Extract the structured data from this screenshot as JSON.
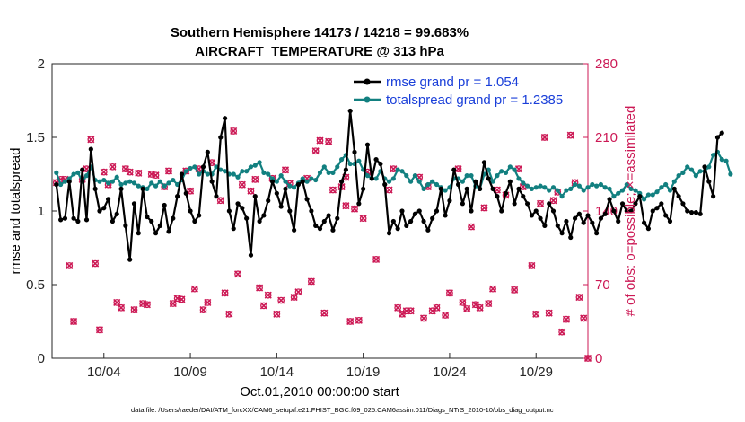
{
  "chart_data": {
    "type": "line",
    "title_line1": "Southern Hemisphere 14173 / 14218 = 99.683%",
    "title_line2": "AIRCRAFT_TEMPERATURE @ 313 hPa",
    "xlabel": "Oct.01,2010 00:00:00 start",
    "ylabel_left": "rmse and totalspread",
    "ylabel_right": "# of obs: o=possible; ×=assimilated",
    "xlim": [
      1,
      32
    ],
    "ylim_left": [
      0,
      2
    ],
    "ylim_right": [
      0,
      280
    ],
    "x_ticks": [
      4,
      9,
      14,
      19,
      24,
      29
    ],
    "x_tick_labels": [
      "10/04",
      "10/09",
      "10/14",
      "10/19",
      "10/24",
      "10/29"
    ],
    "y_ticks_left": [
      0,
      0.5,
      1,
      1.5,
      2
    ],
    "y_tick_labels_left": [
      "0",
      "0.5",
      "1",
      "1.5",
      "2"
    ],
    "y_ticks_right": [
      0,
      70,
      140,
      210,
      280
    ],
    "y_tick_labels_right": [
      "0",
      "70",
      "140",
      "210",
      "280"
    ],
    "legend": [
      "rmse grand pr = 1.054",
      "totalspread grand pr = 1.2385"
    ],
    "footer": "data file: /Users/raeder/DAI/ATM_forcXX/CAM6_setup/f.e21.FHIST_BGC.f09_025.CAM6assim.011/Diags_NTrS_2010-10/obs_diag_output.nc",
    "colors": {
      "rmse": "#000000",
      "totalspread": "#128080",
      "obs": "#cc1955"
    },
    "series": [
      {
        "name": "rmse",
        "x_start": 1.25,
        "x_step": 0.25,
        "values": [
          1.18,
          0.94,
          0.95,
          1.2,
          0.95,
          0.93,
          1.28,
          0.94,
          1.42,
          1.15,
          1.0,
          1.02,
          1.08,
          0.93,
          0.98,
          1.15,
          0.9,
          0.67,
          1.05,
          0.85,
          1.15,
          0.96,
          0.93,
          0.85,
          0.9,
          1.04,
          0.86,
          0.95,
          1.1,
          1.25,
          1.12,
          1.0,
          0.93,
          0.97,
          1.3,
          1.4,
          1.2,
          1.1,
          1.5,
          1.63,
          1.0,
          0.88,
          1.05,
          1.02,
          0.95,
          0.7,
          1.1,
          0.93,
          0.97,
          1.07,
          1.2,
          1.12,
          1.03,
          1.15,
          1.0,
          0.87,
          1.18,
          1.2,
          1.08,
          1.0,
          0.9,
          0.88,
          0.93,
          0.97,
          0.87,
          0.95,
          1.2,
          1.28,
          1.68,
          1.4,
          1.05,
          1.15,
          1.45,
          1.22,
          1.35,
          1.32,
          1.18,
          0.85,
          0.93,
          0.88,
          1.0,
          0.9,
          0.93,
          0.98,
          1.0,
          0.93,
          0.87,
          0.95,
          1.0,
          1.15,
          0.97,
          1.07,
          1.28,
          1.18,
          1.05,
          1.15,
          1.0,
          1.2,
          1.15,
          1.33,
          1.22,
          1.15,
          1.1,
          1.0,
          1.12,
          1.2,
          1.05,
          1.15,
          1.1,
          1.05,
          0.97,
          1.0,
          0.95,
          0.9,
          1.05,
          1.0,
          0.9,
          0.85,
          0.93,
          0.82,
          0.95,
          0.98,
          0.92,
          0.97,
          0.92,
          0.85,
          0.95,
          0.98,
          1.08,
          1.0,
          0.93,
          1.05,
          1.0,
          1.0,
          1.05,
          1.1,
          0.92,
          0.88,
          1.0,
          1.02,
          1.05,
          0.97,
          0.93,
          1.15,
          1.1,
          1.05,
          1.0,
          0.99,
          0.99,
          0.98,
          1.3,
          1.2,
          1.1,
          1.5,
          1.53
        ]
      },
      {
        "name": "totalspread",
        "x_start": 1.25,
        "x_step": 0.25,
        "values": [
          1.26,
          1.18,
          1.2,
          1.22,
          1.25,
          1.26,
          1.2,
          1.24,
          1.3,
          1.21,
          1.2,
          1.21,
          1.19,
          1.2,
          1.23,
          1.18,
          1.19,
          1.2,
          1.19,
          1.17,
          1.16,
          1.15,
          1.19,
          1.17,
          1.2,
          1.17,
          1.19,
          1.21,
          1.18,
          1.21,
          1.27,
          1.29,
          1.3,
          1.25,
          1.27,
          1.25,
          1.25,
          1.3,
          1.28,
          1.27,
          1.25,
          1.25,
          1.23,
          1.27,
          1.27,
          1.3,
          1.31,
          1.33,
          1.26,
          1.25,
          1.22,
          1.2,
          1.24,
          1.2,
          1.17,
          1.16,
          1.19,
          1.22,
          1.2,
          1.22,
          1.21,
          1.26,
          1.3,
          1.26,
          1.26,
          1.3,
          1.35,
          1.38,
          1.32,
          1.32,
          1.34,
          1.28,
          1.24,
          1.22,
          1.22,
          1.27,
          1.22,
          1.2,
          1.22,
          1.28,
          1.27,
          1.24,
          1.2,
          1.24,
          1.2,
          1.15,
          1.18,
          1.2,
          1.18,
          1.16,
          1.14,
          1.16,
          1.22,
          1.22,
          1.2,
          1.24,
          1.24,
          1.17,
          1.15,
          1.25,
          1.28,
          1.2,
          1.24,
          1.27,
          1.26,
          1.3,
          1.28,
          1.22,
          1.19,
          1.17,
          1.15,
          1.16,
          1.17,
          1.16,
          1.14,
          1.16,
          1.14,
          1.1,
          1.14,
          1.15,
          1.18,
          1.17,
          1.14,
          1.16,
          1.18,
          1.17,
          1.18,
          1.16,
          1.15,
          1.1,
          1.12,
          1.14,
          1.18,
          1.15,
          1.14,
          1.12,
          1.08,
          1.11,
          1.11,
          1.13,
          1.16,
          1.18,
          1.14,
          1.2,
          1.24,
          1.26,
          1.3,
          1.28,
          1.24,
          1.27,
          1.27,
          1.3,
          1.38,
          1.4,
          1.35,
          1.34,
          1.25
        ]
      }
    ],
    "obs_points": [
      [
        1.25,
        167
      ],
      [
        1.5,
        170
      ],
      [
        1.75,
        170
      ],
      [
        2,
        88
      ],
      [
        2.25,
        35
      ],
      [
        2.75,
        170
      ],
      [
        3,
        180
      ],
      [
        3.25,
        208
      ],
      [
        3.5,
        90
      ],
      [
        3.75,
        27
      ],
      [
        4,
        177
      ],
      [
        4.25,
        165
      ],
      [
        4.5,
        182
      ],
      [
        4.75,
        53
      ],
      [
        5,
        48
      ],
      [
        5.25,
        180
      ],
      [
        5.5,
        177
      ],
      [
        5.75,
        46
      ],
      [
        6,
        176
      ],
      [
        6.25,
        52
      ],
      [
        6.5,
        51
      ],
      [
        6.75,
        175
      ],
      [
        7,
        174
      ],
      [
        7.5,
        163
      ],
      [
        7.75,
        178
      ],
      [
        8,
        52
      ],
      [
        8.25,
        57
      ],
      [
        8.5,
        56
      ],
      [
        8.75,
        178
      ],
      [
        9,
        159
      ],
      [
        9.25,
        66
      ],
      [
        9.5,
        180
      ],
      [
        9.75,
        46
      ],
      [
        10,
        53
      ],
      [
        10.25,
        186
      ],
      [
        10.75,
        150
      ],
      [
        11,
        62
      ],
      [
        11.25,
        42
      ],
      [
        11.5,
        216
      ],
      [
        11.75,
        80
      ],
      [
        12,
        165
      ],
      [
        12.5,
        159
      ],
      [
        12.75,
        170
      ],
      [
        13,
        67
      ],
      [
        13.25,
        50
      ],
      [
        13.5,
        60
      ],
      [
        13.75,
        171
      ],
      [
        14,
        42
      ],
      [
        14.25,
        55
      ],
      [
        14.5,
        179
      ],
      [
        14.75,
        166
      ],
      [
        15,
        58
      ],
      [
        15.25,
        63
      ],
      [
        15.75,
        171
      ],
      [
        16,
        73
      ],
      [
        16.25,
        197
      ],
      [
        16.5,
        207
      ],
      [
        16.75,
        43
      ],
      [
        17,
        206
      ],
      [
        17.25,
        160
      ],
      [
        17.75,
        163
      ],
      [
        18,
        172
      ],
      [
        18,
        145
      ],
      [
        18.25,
        35
      ],
      [
        18.5,
        142
      ],
      [
        18.75,
        36
      ],
      [
        19,
        133
      ],
      [
        19.25,
        177
      ],
      [
        19.75,
        94
      ],
      [
        20.5,
        160
      ],
      [
        20.75,
        180
      ],
      [
        21,
        48
      ],
      [
        21.25,
        42
      ],
      [
        21.5,
        45
      ],
      [
        21.75,
        45
      ],
      [
        22.25,
        172
      ],
      [
        22.5,
        38
      ],
      [
        22.75,
        163
      ],
      [
        23,
        45
      ],
      [
        23.25,
        48
      ],
      [
        23.75,
        41
      ],
      [
        24,
        62
      ],
      [
        24.5,
        180
      ],
      [
        24.75,
        53
      ],
      [
        25,
        47
      ],
      [
        25.25,
        125
      ],
      [
        25.5,
        51
      ],
      [
        25.75,
        48
      ],
      [
        26,
        143
      ],
      [
        26.25,
        52
      ],
      [
        26.5,
        66
      ],
      [
        26.75,
        160
      ],
      [
        27.25,
        155
      ],
      [
        27.75,
        65
      ],
      [
        28,
        180
      ],
      [
        28.25,
        163
      ],
      [
        28.75,
        88
      ],
      [
        29,
        42
      ],
      [
        29.25,
        147
      ],
      [
        29.5,
        210
      ],
      [
        29.75,
        43
      ],
      [
        30,
        150
      ],
      [
        30.25,
        158
      ],
      [
        30.5,
        25
      ],
      [
        30.75,
        37
      ],
      [
        31,
        212
      ],
      [
        31.25,
        167
      ],
      [
        31.5,
        58
      ],
      [
        31.75,
        38
      ],
      [
        32,
        0
      ]
    ]
  }
}
